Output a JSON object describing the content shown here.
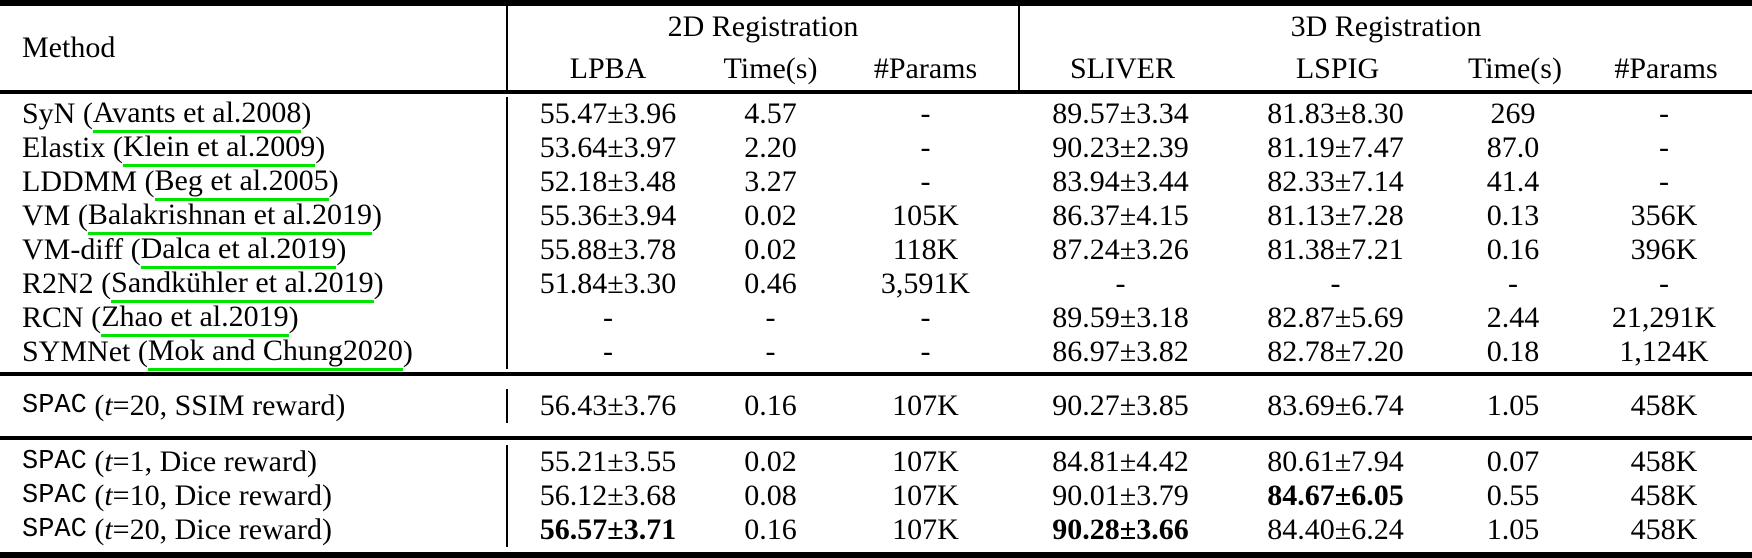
{
  "colors": {
    "background": "#ffffff",
    "text": "#000000",
    "rule": "#000000",
    "citation_underline": "#00e400"
  },
  "punctuation": {
    "open": " (",
    "close": ")",
    "space": " "
  },
  "header": {
    "method": "Method",
    "groups": [
      {
        "title": "2D Registration",
        "cols": [
          "LPBA",
          "Time(s)",
          "#Params"
        ]
      },
      {
        "title": "3D Registration",
        "cols": [
          "SLIVER",
          "LSPIG",
          "Time(s)",
          "#Params"
        ]
      }
    ]
  },
  "sections": [
    {
      "rows": [
        {
          "method": {
            "name": "SyN",
            "citation": "Avants et al.",
            "year": "2008"
          },
          "cells": [
            "55.47±3.96",
            "4.57",
            "-",
            "89.57±3.34",
            "81.83±8.30",
            "269",
            "-"
          ],
          "bold": []
        },
        {
          "method": {
            "name": "Elastix",
            "citation": "Klein et al.",
            "year": "2009"
          },
          "cells": [
            "53.64±3.97",
            "2.20",
            "-",
            "90.23±2.39",
            "81.19±7.47",
            "87.0",
            "-"
          ],
          "bold": []
        },
        {
          "method": {
            "name": "LDDMM",
            "citation": "Beg et al.",
            "year": "2005"
          },
          "cells": [
            "52.18±3.48",
            "3.27",
            "-",
            "83.94±3.44",
            "82.33±7.14",
            "41.4",
            "-"
          ],
          "bold": []
        },
        {
          "method": {
            "name": "VM",
            "citation": "Balakrishnan et al.",
            "year": "2019"
          },
          "cells": [
            "55.36±3.94",
            "0.02",
            "105K",
            "86.37±4.15",
            "81.13±7.28",
            "0.13",
            "356K"
          ],
          "bold": []
        },
        {
          "method": {
            "name": "VM-diff",
            "citation": "Dalca et al.",
            "year": "2019"
          },
          "cells": [
            "55.88±3.78",
            "0.02",
            "118K",
            "87.24±3.26",
            "81.38±7.21",
            "0.16",
            "396K"
          ],
          "bold": []
        },
        {
          "method": {
            "name": "R2N2",
            "citation": "Sandkühler et al.",
            "year": "2019"
          },
          "cells": [
            "51.84±3.30",
            "0.46",
            "3,591K",
            "-",
            "-",
            "-",
            "-"
          ],
          "bold": []
        },
        {
          "method": {
            "name": "RCN",
            "citation": "Zhao et al.",
            "year": "2019"
          },
          "cells": [
            "-",
            "-",
            "-",
            "89.59±3.18",
            "82.87±5.69",
            "2.44",
            "21,291K"
          ],
          "bold": []
        },
        {
          "method": {
            "name": "SYMNet",
            "citation": "Mok and Chung",
            "year": "2020"
          },
          "cells": [
            "-",
            "-",
            "-",
            "86.97±3.82",
            "82.78±7.20",
            "0.18",
            "1,124K"
          ],
          "bold": []
        }
      ]
    },
    {
      "rows": [
        {
          "method": {
            "mono": "SPAC",
            "t": "t",
            "rest": "=20, SSIM reward)"
          },
          "cells": [
            "56.43±3.76",
            "0.16",
            "107K",
            "90.27±3.85",
            "83.69±6.74",
            "1.05",
            "458K"
          ],
          "bold": []
        }
      ]
    },
    {
      "rows": [
        {
          "method": {
            "mono": "SPAC",
            "t": "t",
            "rest": "=1, Dice reward)"
          },
          "cells": [
            "55.21±3.55",
            "0.02",
            "107K",
            "84.81±4.42",
            "80.61±7.94",
            "0.07",
            "458K"
          ],
          "bold": []
        },
        {
          "method": {
            "mono": "SPAC",
            "t": "t",
            "rest": "=10, Dice reward)"
          },
          "cells": [
            "56.12±3.68",
            "0.08",
            "107K",
            "90.01±3.79",
            "84.67±6.05",
            "0.55",
            "458K"
          ],
          "bold": [
            4
          ]
        },
        {
          "method": {
            "mono": "SPAC",
            "t": "t",
            "rest": "=20, Dice reward)"
          },
          "cells": [
            "56.57±3.71",
            "0.16",
            "107K",
            "90.28±3.66",
            "84.40±6.24",
            "1.05",
            "458K"
          ],
          "bold": [
            0,
            3
          ]
        }
      ]
    }
  ]
}
